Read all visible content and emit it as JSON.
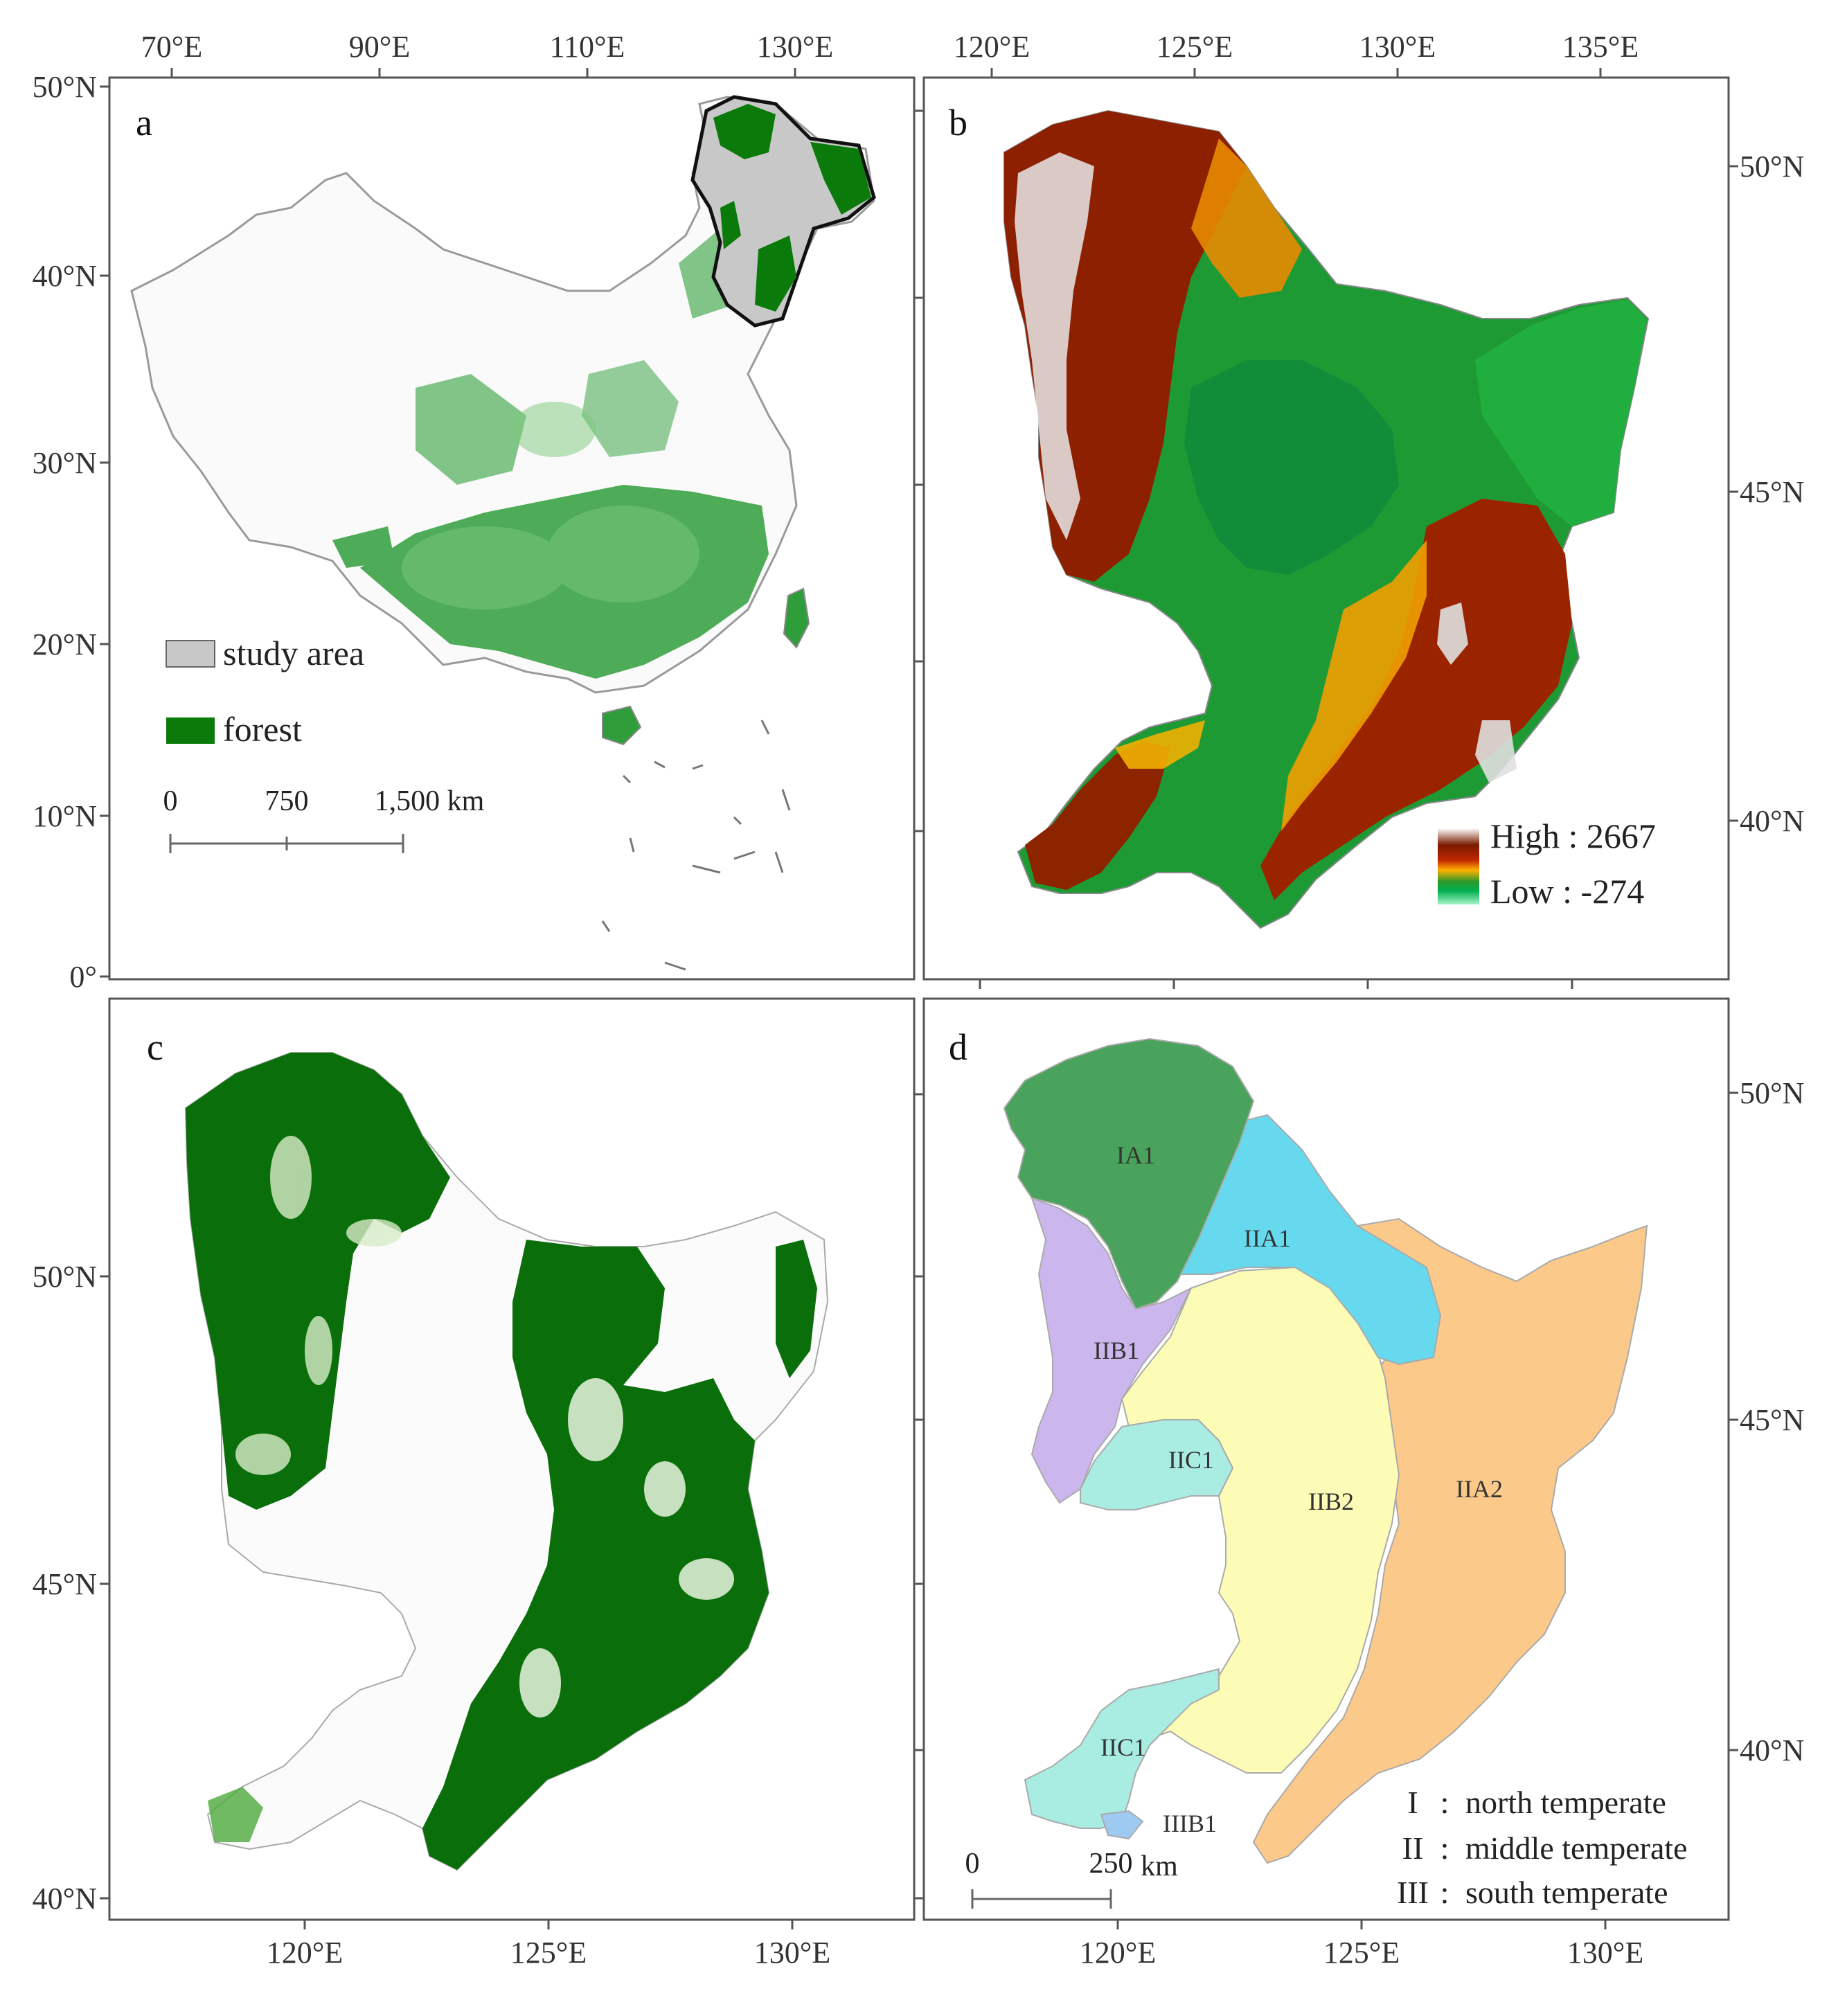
{
  "panels": {
    "a": {
      "letter": "a",
      "top_ticks": [
        "70°E",
        "90°E",
        "110°E",
        "130°E"
      ],
      "left_ticks": [
        "50°N",
        "40°N",
        "30°N",
        "20°N",
        "10°N",
        "0°"
      ],
      "legend": {
        "study_area": "study area",
        "forest": "forest"
      },
      "legend_colors": {
        "study_area": "#c8c8c8",
        "forest": "#0a7a0a"
      },
      "scale": {
        "zero": "0",
        "mid": "750",
        "end": "1,500 km"
      }
    },
    "b": {
      "letter": "b",
      "top_ticks": [
        "120°E",
        "125°E",
        "130°E",
        "135°E"
      ],
      "right_ticks": [
        "50°N",
        "45°N",
        "40°N"
      ],
      "legend": {
        "high": "High : 2667",
        "low": "Low : -274"
      },
      "ramp_colors": [
        "#ffffff",
        "#7a1a00",
        "#b01e00",
        "#ffb000",
        "#2a9a2a",
        "#00b050",
        "#a0f0c0"
      ]
    },
    "c": {
      "letter": "c",
      "left_ticks": [
        "50°N",
        "45°N",
        "40°N"
      ],
      "bottom_ticks": [
        "120°E",
        "125°E",
        "130°E"
      ],
      "forest_color": "#0a6e0a"
    },
    "d": {
      "letter": "d",
      "right_ticks": [
        "50°N",
        "45°N",
        "40°N"
      ],
      "bottom_ticks": [
        "120°E",
        "125°E",
        "130°E"
      ],
      "regions": [
        {
          "label": "IA1",
          "color": "#4aa35c"
        },
        {
          "label": "IIA1",
          "color": "#66d9ee"
        },
        {
          "label": "IIB1",
          "color": "#ccb6ee"
        },
        {
          "label": "IIC1",
          "color": "#a8ece2"
        },
        {
          "label": "IIB2",
          "color": "#fdfcb6"
        },
        {
          "label": "IIA2",
          "color": "#fbc98a"
        },
        {
          "label": "IIC1",
          "color": "#a8ece2"
        },
        {
          "label": "IIIB1",
          "color": "#9ec9f0"
        }
      ],
      "zones": [
        {
          "numeral": "I",
          "name": "north temperate"
        },
        {
          "numeral": "II",
          "name": "middle temperate"
        },
        {
          "numeral": "III",
          "name": "south temperate"
        }
      ],
      "scale": {
        "zero": "0",
        "end": "250",
        "unit": "km"
      }
    }
  }
}
